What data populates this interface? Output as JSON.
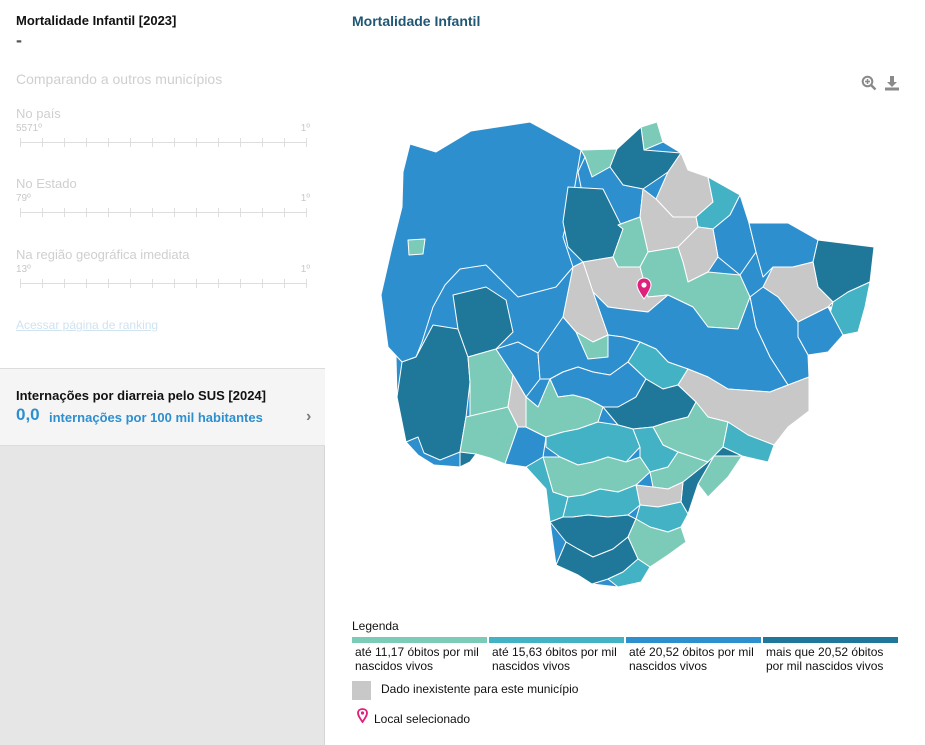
{
  "indicator": {
    "title": "Mortalidade Infantil [2023]",
    "value": "-"
  },
  "comparison": {
    "title": "Comparando a outros municípios",
    "rankings": [
      {
        "label": "No país",
        "worst": "5571º",
        "best": "1º"
      },
      {
        "label": "No Estado",
        "worst": "79º",
        "best": "1º"
      },
      {
        "label": "Na região geográfica imediata",
        "worst": "13º",
        "best": "1º"
      }
    ],
    "link": "Acessar página de ranking"
  },
  "card": {
    "title": "Internações por diarreia pelo SUS [2024]",
    "value": "0,0",
    "unit": "internações por 100 mil habitantes"
  },
  "map": {
    "title": "Mortalidade Infantil",
    "icons": {
      "zoom": "zoom-in-icon",
      "download": "download-icon",
      "pin": "map-pin-icon",
      "card_arrow": "chevron-right-icon"
    }
  },
  "legend": {
    "title": "Legenda",
    "items": [
      {
        "text": "até 11,17 óbitos por mil nascidos vivos",
        "color": "#7ccbb9"
      },
      {
        "text": "até 15,63 óbitos por mil nascidos vivos",
        "color": "#42b2c4"
      },
      {
        "text": "até 20,52 óbitos por mil nascidos vivos",
        "color": "#2e8fcf"
      },
      {
        "text": "mais que 20,52 óbitos por mil nascidos vivos",
        "color": "#1f7899"
      }
    ],
    "nodata": {
      "text": "Dado inexistente para este município",
      "color": "#c8c8c8"
    },
    "selected": {
      "text": "Local selecionado",
      "color": "#e0207c"
    }
  }
}
